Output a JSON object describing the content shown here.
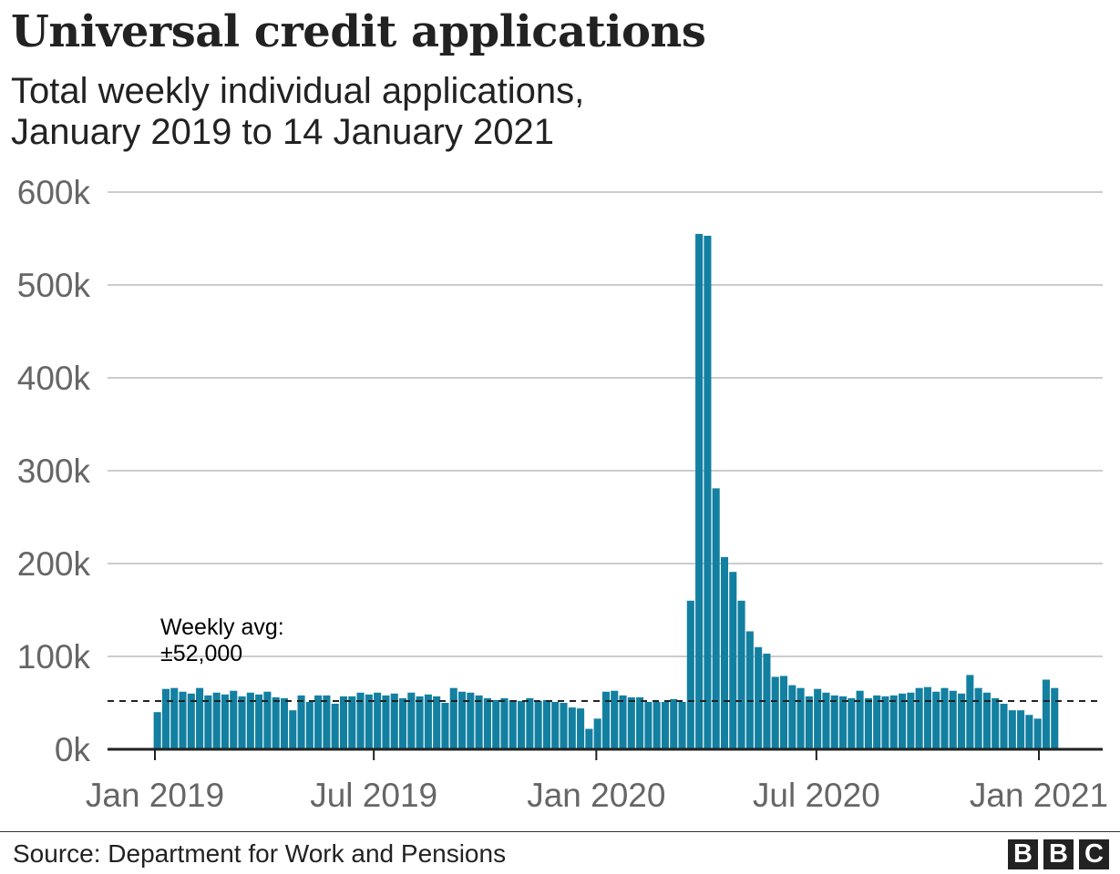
{
  "title": "Universal credit applications",
  "subtitle_line1": "Total weekly individual applications,",
  "subtitle_line2": "January 2019 to 14 January 2021",
  "source": "Source: Department for Work and Pensions",
  "logo": [
    "B",
    "B",
    "C"
  ],
  "colors": {
    "bar": "#1380a1",
    "grid": "#cccccc",
    "axis": "#222222",
    "tick_text": "#666666",
    "text": "#222222"
  },
  "chart_data": {
    "type": "bar",
    "title": "Universal credit applications",
    "subtitle": "Total weekly individual applications, January 2019 to 14 January 2021",
    "x_tick_labels": [
      "Jan 2019",
      "Jul 2019",
      "Jan 2020",
      "Jul 2020",
      "Jan 2021"
    ],
    "y_tick_labels": [
      "0k",
      "100k",
      "200k",
      "300k",
      "400k",
      "500k",
      "600k"
    ],
    "ylim": [
      0,
      600000
    ],
    "grid": true,
    "first_week": "2019-01-03",
    "values": [
      40000,
      65000,
      66000,
      62000,
      60000,
      66000,
      58000,
      61000,
      59000,
      63000,
      57000,
      61000,
      59000,
      62000,
      56000,
      55000,
      42000,
      58000,
      51000,
      58000,
      58000,
      49000,
      57000,
      57000,
      61000,
      59000,
      61000,
      58000,
      60000,
      55000,
      61000,
      57000,
      59000,
      57000,
      50000,
      66000,
      62000,
      61000,
      58000,
      55000,
      53000,
      55000,
      53000,
      52000,
      55000,
      52000,
      53000,
      51000,
      50000,
      45000,
      44000,
      22000,
      33000,
      62000,
      63000,
      58000,
      56000,
      56000,
      51000,
      51000,
      51000,
      54000,
      51000,
      160000,
      555000,
      553000,
      281000,
      207000,
      191000,
      160000,
      127000,
      110000,
      103000,
      78000,
      79000,
      69000,
      66000,
      57000,
      65000,
      61000,
      58000,
      57000,
      55000,
      63000,
      55000,
      58000,
      57000,
      58000,
      60000,
      61000,
      66000,
      67000,
      62000,
      66000,
      63000,
      60000,
      80000,
      66000,
      61000,
      55000,
      49000,
      42000,
      42000,
      37000,
      33000,
      75000,
      66000
    ],
    "reference_line": {
      "value": 52000,
      "style": "dashed"
    },
    "annotation_line1": "Weekly avg:",
    "annotation_line2": "±52,000"
  }
}
